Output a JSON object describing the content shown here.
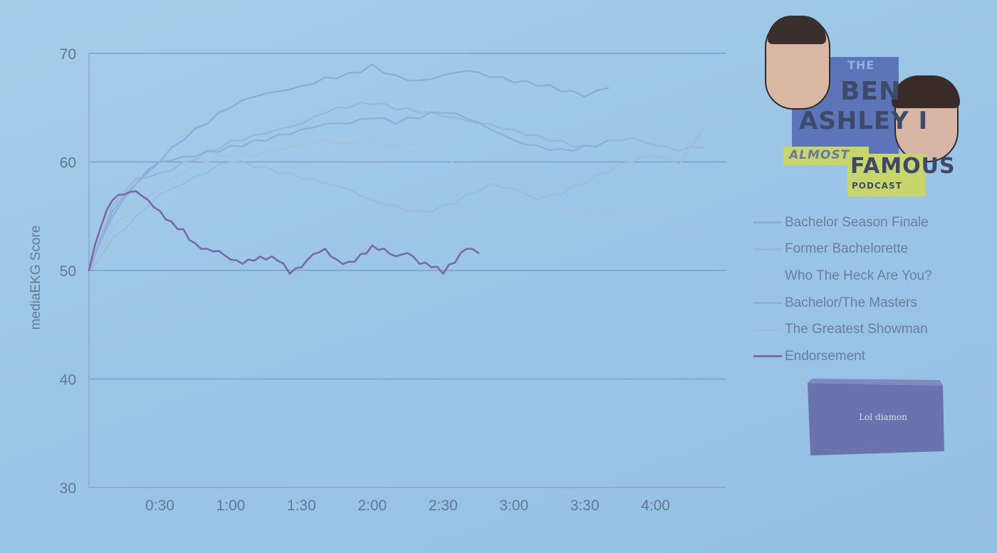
{
  "chart_data": {
    "type": "line",
    "ylabel": "mediaEKG Score",
    "ylim": [
      30,
      70
    ],
    "yticks": [
      30,
      40,
      50,
      60,
      70
    ],
    "xlim": [
      0,
      270
    ],
    "xticks": [
      {
        "value": 30,
        "label": "0:30"
      },
      {
        "value": 60,
        "label": "1:00"
      },
      {
        "value": 90,
        "label": "1:30"
      },
      {
        "value": 120,
        "label": "2:00"
      },
      {
        "value": 150,
        "label": "2:30"
      },
      {
        "value": 180,
        "label": "3:00"
      },
      {
        "value": 210,
        "label": "3:30"
      },
      {
        "value": 240,
        "label": "4:00"
      }
    ],
    "grid": "horizontal",
    "legend_position": "right",
    "series": [
      {
        "name": "Bachelor Season Finale",
        "color": "#8aaed6",
        "x": [
          0,
          10,
          20,
          30,
          40,
          50,
          60,
          70,
          80,
          90,
          100,
          110,
          120,
          130,
          140,
          150,
          160,
          170,
          180,
          190,
          200,
          210,
          220
        ],
        "y": [
          50,
          55.5,
          58,
          60,
          62,
          63.5,
          65,
          66,
          66.5,
          67,
          67.8,
          68.2,
          69,
          68,
          67.5,
          68,
          68.4,
          67.8,
          67.3,
          67,
          66.5,
          66,
          66.8
        ]
      },
      {
        "name": "Former Bachelorette",
        "color": "#98b8da",
        "x": [
          0,
          10,
          20,
          30,
          40,
          50,
          60,
          70,
          80,
          90,
          100,
          110,
          120,
          130,
          140,
          150,
          160,
          170,
          180,
          190,
          200,
          210,
          220,
          230,
          240,
          250,
          260
        ],
        "y": [
          50,
          56,
          58.5,
          59,
          60,
          61,
          62,
          62.5,
          63,
          63.5,
          64.5,
          65,
          65.3,
          64.8,
          64.5,
          64.2,
          63.8,
          63.5,
          63,
          62.5,
          62,
          61.5,
          62,
          62.2,
          61.5,
          61,
          61.3
        ]
      },
      {
        "name": "Who The Heck Are You?",
        "color": "#a5c2de",
        "x": [
          0,
          10,
          20,
          30,
          40,
          50,
          60,
          70,
          80,
          90,
          100,
          110,
          120,
          130,
          140,
          150,
          160,
          170,
          180,
          190,
          200,
          210,
          220,
          230,
          240,
          250,
          260
        ],
        "y": [
          50,
          54,
          56,
          57.5,
          59,
          60,
          60.5,
          60.5,
          61,
          61.5,
          62,
          61.8,
          62,
          61.5,
          61,
          60.5,
          59.5,
          58.5,
          57.5,
          56.5,
          55.5,
          55,
          55,
          55.5,
          55,
          54.5,
          53
        ]
      },
      {
        "name": "Bachelor/The Masters",
        "color": "#8eb1d8",
        "x": [
          0,
          10,
          20,
          30,
          40,
          50,
          60,
          70,
          80,
          90,
          100,
          110,
          120,
          130,
          140,
          150,
          160,
          170,
          180,
          190,
          200,
          210,
          220
        ],
        "y": [
          50,
          55,
          58,
          60,
          60.5,
          61,
          61.5,
          62,
          62.5,
          63,
          63.5,
          63.5,
          64,
          63.5,
          64,
          64.5,
          64,
          63,
          62,
          61.5,
          61.2,
          61.5,
          62
        ]
      },
      {
        "name": "The Greatest Showman",
        "color": "#9cbedd",
        "x": [
          0,
          10,
          20,
          30,
          40,
          50,
          60,
          70,
          80,
          90,
          100,
          110,
          120,
          130,
          140,
          150,
          160,
          170,
          180,
          190,
          200,
          210,
          220,
          230,
          240,
          250,
          260
        ],
        "y": [
          50,
          53,
          55,
          57,
          58,
          59,
          60,
          59.5,
          59,
          58.5,
          58,
          57.5,
          56.5,
          56,
          55.5,
          56,
          57,
          58,
          57.5,
          56.5,
          57,
          58,
          59,
          60,
          60.5,
          59.8,
          63
        ]
      },
      {
        "name": "Endorsement",
        "color": "#7a6aa4",
        "x": [
          0,
          5,
          10,
          15,
          20,
          25,
          30,
          35,
          40,
          45,
          50,
          55,
          60,
          65,
          70,
          75,
          80,
          85,
          90,
          95,
          100,
          105,
          110,
          115,
          120,
          125,
          130,
          135,
          140,
          145,
          150,
          155,
          160,
          165
        ],
        "y": [
          50,
          54,
          56.5,
          57,
          57.3,
          56.5,
          55.5,
          54.5,
          53.8,
          52.5,
          52,
          51.8,
          51,
          50.6,
          50.9,
          51,
          50.9,
          49.7,
          50.3,
          51.5,
          52,
          51,
          50.8,
          51.5,
          52.3,
          52,
          51.3,
          51.6,
          50.6,
          50.3,
          49.7,
          50.7,
          52,
          51.6
        ]
      }
    ]
  },
  "logo": {
    "line1": "THE",
    "line2": "BEN",
    "line3": "ASHLEY I",
    "line4": "ALMOST",
    "line5": "FAMOUS",
    "line6": "PODCAST"
  },
  "product_box_label": "Lol diamon"
}
